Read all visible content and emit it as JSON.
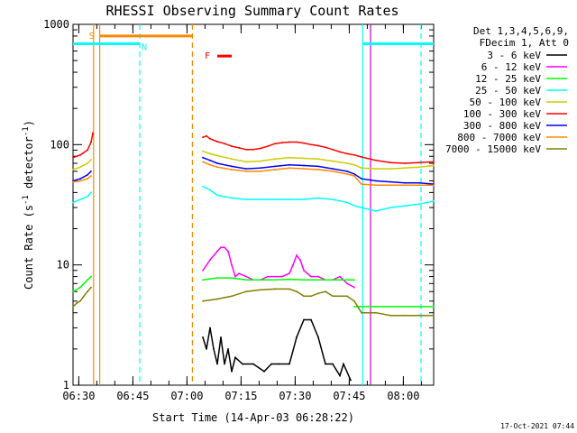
{
  "chart_data": {
    "type": "line",
    "title": "RHESSI Observing Summary Count Rates",
    "xlabel": "Start Time (14-Apr-03 06:28:22)",
    "ylabel": "Count Rate (s-1 detector-1)",
    "ylabel_parts": {
      "pre": "Count Rate (s",
      "sup1": "-1",
      "mid": " detector",
      "sup2": "-1",
      "post": ")"
    },
    "y_scale": "log",
    "ylim": [
      1,
      1000
    ],
    "xlim_minutes": [
      0,
      100
    ],
    "x_ticks": [
      {
        "label": "06:30",
        "t": 1.6
      },
      {
        "label": "06:45",
        "t": 16.6
      },
      {
        "label": "07:00",
        "t": 31.6
      },
      {
        "label": "07:15",
        "t": 46.6
      },
      {
        "label": "07:30",
        "t": 61.6
      },
      {
        "label": "07:45",
        "t": 76.6
      },
      {
        "label": "08:00",
        "t": 91.6
      }
    ],
    "y_ticks": [
      {
        "label": "1",
        "v": 1
      },
      {
        "label": "10",
        "v": 10
      },
      {
        "label": "100",
        "v": 100
      },
      {
        "label": "1000",
        "v": 1000
      }
    ],
    "legend": {
      "header": [
        "Det 1,3,4,5,6,9,",
        "FDecim 1, Att 0"
      ],
      "placement": "right"
    },
    "series": [
      {
        "name": "3 - 6 keV",
        "color": "#000000",
        "segments": [
          {
            "t": [
              36,
              37,
              38,
              39,
              40,
              41,
              42,
              43,
              44,
              45,
              47,
              50,
              53,
              55,
              57,
              60,
              62,
              64,
              66,
              68,
              70,
              72,
              74,
              75,
              77
            ],
            "v": [
              2.5,
              2.0,
              3.0,
              2.0,
              1.5,
              2.5,
              1.5,
              2.0,
              1.3,
              1.7,
              1.5,
              1.5,
              1.3,
              1.5,
              1.5,
              1.5,
              2.5,
              3.5,
              3.5,
              2.5,
              1.5,
              1.5,
              1.2,
              1.5,
              1.1
            ]
          }
        ]
      },
      {
        "name": "6 - 12 keV",
        "color": "#ff00ff",
        "segments": [
          {
            "t": [
              36,
              38,
              40,
              41,
              42,
              43,
              44,
              45,
              46,
              48,
              50,
              52,
              54,
              56,
              58,
              60,
              61,
              62,
              63,
              64,
              66,
              68,
              70,
              72,
              74,
              76,
              78
            ],
            "v": [
              9,
              11,
              13,
              14,
              14,
              13,
              10,
              8,
              8.5,
              8,
              7.5,
              7.5,
              8,
              8,
              8,
              8.5,
              10,
              12,
              11,
              9,
              8,
              8,
              7.5,
              7.5,
              8,
              7,
              6.5
            ]
          }
        ]
      },
      {
        "name": "12 - 25 keV",
        "color": "#00ff00",
        "segments": [
          {
            "t": [
              0,
              2,
              4,
              5
            ],
            "v": [
              6.0,
              6.5,
              7.5,
              8.0
            ]
          },
          {
            "t": [
              36,
              40,
              44,
              48,
              52,
              56,
              60,
              64,
              68,
              72,
              76,
              78
            ],
            "v": [
              7.5,
              7.8,
              7.8,
              7.5,
              7.5,
              7.5,
              7.6,
              7.5,
              7.5,
              7.5,
              7.5,
              7.5
            ]
          },
          {
            "t": [
              78,
              84,
              90,
              95,
              100
            ],
            "v": [
              4.5,
              4.5,
              4.5,
              4.5,
              4.5
            ]
          }
        ]
      },
      {
        "name": "25 - 50 keV",
        "color": "#00ffff",
        "segments": [
          {
            "t": [
              0,
              2,
              4,
              5
            ],
            "v": [
              33,
              35,
              37,
              40
            ]
          },
          {
            "t": [
              36,
              38,
              40,
              44,
              48,
              52,
              56,
              60,
              64,
              68,
              72,
              74,
              76,
              78,
              80,
              84,
              88,
              92,
              96,
              100
            ],
            "v": [
              45,
              42,
              38,
              36,
              35,
              35,
              35,
              35,
              35,
              36,
              35,
              34,
              33,
              31,
              30,
              28,
              30,
              31,
              32,
              34
            ]
          }
        ]
      },
      {
        "name": "50 - 100 keV",
        "color": "#cccc00",
        "segments": [
          {
            "t": [
              0,
              2,
              4,
              5
            ],
            "v": [
              62,
              65,
              70,
              75
            ]
          },
          {
            "t": [
              36,
              38,
              40,
              44,
              48,
              52,
              56,
              60,
              64,
              68,
              72,
              76,
              78,
              80,
              84,
              88,
              92,
              96,
              100
            ],
            "v": [
              88,
              84,
              81,
              76,
              72,
              73,
              76,
              78,
              77,
              76,
              73,
              70,
              68,
              64,
              63,
              63,
              64,
              65,
              67
            ]
          }
        ]
      },
      {
        "name": "100 - 300 keV",
        "color": "#ff0000",
        "segments": [
          {
            "t": [
              0,
              2,
              4,
              5,
              5.5
            ],
            "v": [
              78,
              82,
              90,
              105,
              125
            ]
          },
          {
            "t": [
              36,
              37,
              38,
              40,
              42,
              44,
              46,
              48,
              50,
              52,
              54,
              56,
              58,
              60,
              62,
              64,
              66,
              68,
              70,
              72,
              74,
              76,
              78,
              80,
              84,
              88,
              92,
              96,
              100
            ],
            "v": [
              115,
              118,
              112,
              106,
              102,
              97,
              94,
              91,
              91,
              93,
              97,
              102,
              104,
              105,
              105,
              103,
              100,
              98,
              95,
              91,
              87,
              84,
              82,
              79,
              74,
              71,
              70,
              71,
              72
            ]
          }
        ]
      },
      {
        "name": "300 - 800 keV",
        "color": "#0000ff",
        "segments": [
          {
            "t": [
              0,
              2,
              4,
              5
            ],
            "v": [
              50,
              52,
              56,
              60
            ]
          },
          {
            "t": [
              36,
              38,
              40,
              44,
              48,
              52,
              56,
              60,
              64,
              68,
              72,
              76,
              78,
              80,
              84,
              88,
              92,
              96,
              100
            ],
            "v": [
              78,
              74,
              70,
              66,
              63,
              64,
              66,
              68,
              67,
              66,
              63,
              60,
              57,
              52,
              50,
              49,
              48,
              48,
              47
            ]
          }
        ]
      },
      {
        "name": "800 - 7000 keV",
        "color": "#ff8800",
        "segments": [
          {
            "t": [
              0,
              2,
              4,
              5
            ],
            "v": [
              49,
              50,
              52,
              55
            ]
          },
          {
            "t": [
              36,
              38,
              40,
              44,
              48,
              52,
              56,
              60,
              64,
              68,
              72,
              76,
              78,
              80,
              84,
              88,
              92,
              96,
              100
            ],
            "v": [
              72,
              68,
              65,
              62,
              60,
              60,
              62,
              64,
              63,
              62,
              60,
              57,
              55,
              47,
              46,
              46,
              46,
              46,
              46
            ]
          }
        ]
      },
      {
        "name": "7000 - 15000 keV",
        "color": "#808000",
        "segments": [
          {
            "t": [
              0,
              1,
              2,
              3,
              4,
              5
            ],
            "v": [
              4.5,
              4.8,
              5.0,
              5.5,
              6.0,
              6.5
            ]
          },
          {
            "t": [
              36,
              40,
              44,
              48,
              52,
              56,
              60,
              62,
              64,
              66,
              68,
              70,
              72,
              76,
              78,
              80,
              84,
              88,
              92,
              96,
              100
            ],
            "v": [
              5.0,
              5.2,
              5.5,
              6.0,
              6.2,
              6.3,
              6.3,
              6.0,
              5.5,
              5.5,
              5.8,
              6.0,
              5.5,
              5.5,
              5.0,
              4.0,
              4.0,
              3.8,
              3.8,
              3.8,
              3.8
            ]
          }
        ]
      }
    ],
    "time_markers": [
      {
        "t": 5.7,
        "color": "#ff8800",
        "style": "solid"
      },
      {
        "t": 7.4,
        "color": "#ff8800",
        "style": "solid"
      },
      {
        "t": 33.1,
        "color": "#ff8800",
        "style": "dashed"
      },
      {
        "t": 18.5,
        "color": "#00ffff",
        "style": "dashed"
      },
      {
        "t": 80.3,
        "color": "#00ffff",
        "style": "solid"
      },
      {
        "t": 82.5,
        "color": "#cc00cc",
        "style": "solid"
      },
      {
        "t": 96.5,
        "color": "#00ffff",
        "style": "dashed"
      }
    ],
    "flag_bars": [
      {
        "label": "S",
        "t0": 7.4,
        "t1": 33.1,
        "v": 800,
        "color": "#ff8800"
      },
      {
        "label": "N",
        "t0": 0,
        "t1": 18.5,
        "v": 690,
        "color": "#00ffff"
      },
      {
        "label": "",
        "t0": 80.3,
        "t1": 100,
        "v": 690,
        "color": "#00ffff"
      },
      {
        "label": "F",
        "t0": 40,
        "t1": 44,
        "v": 545,
        "color": "#ff0000"
      }
    ]
  },
  "footer": {
    "timestamp": "17-Oct-2021 07:44"
  }
}
